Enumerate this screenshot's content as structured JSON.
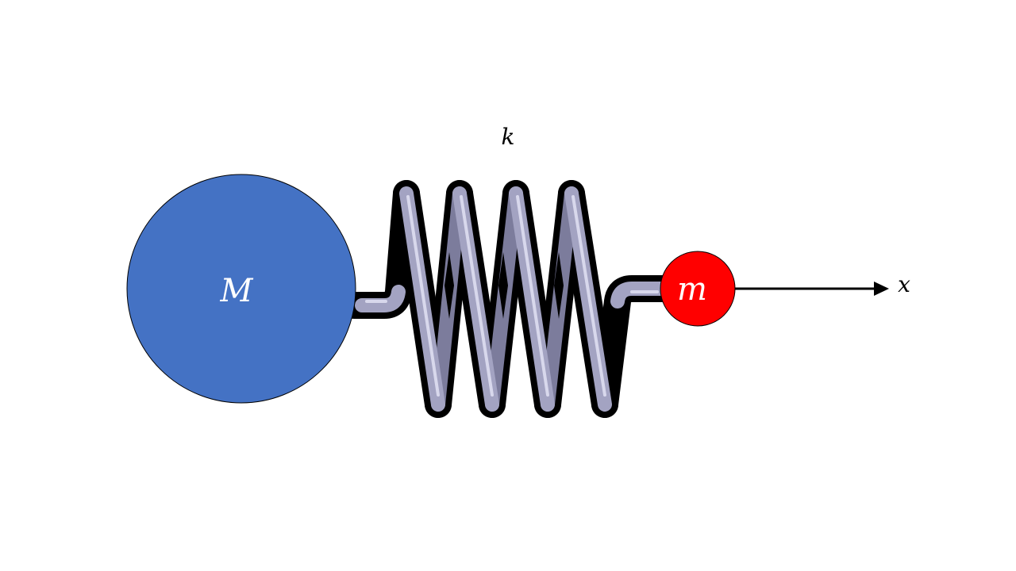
{
  "diagram": {
    "labels": {
      "large_mass": "M",
      "small_mass": "m",
      "spring_constant": "k",
      "axis": "x"
    },
    "colors": {
      "large_mass_fill": "#4472C4",
      "small_mass_fill": "#FF0000",
      "spring_outline": "#000000",
      "spring_coil": "#A3A3C2",
      "spring_highlight": "#D8D8EC",
      "spring_shadow": "#7C7C9C",
      "arrow": "#000000",
      "mass_label": "#FFFFFF",
      "text": "#000000"
    },
    "spring": {
      "coil_count": 4
    }
  }
}
